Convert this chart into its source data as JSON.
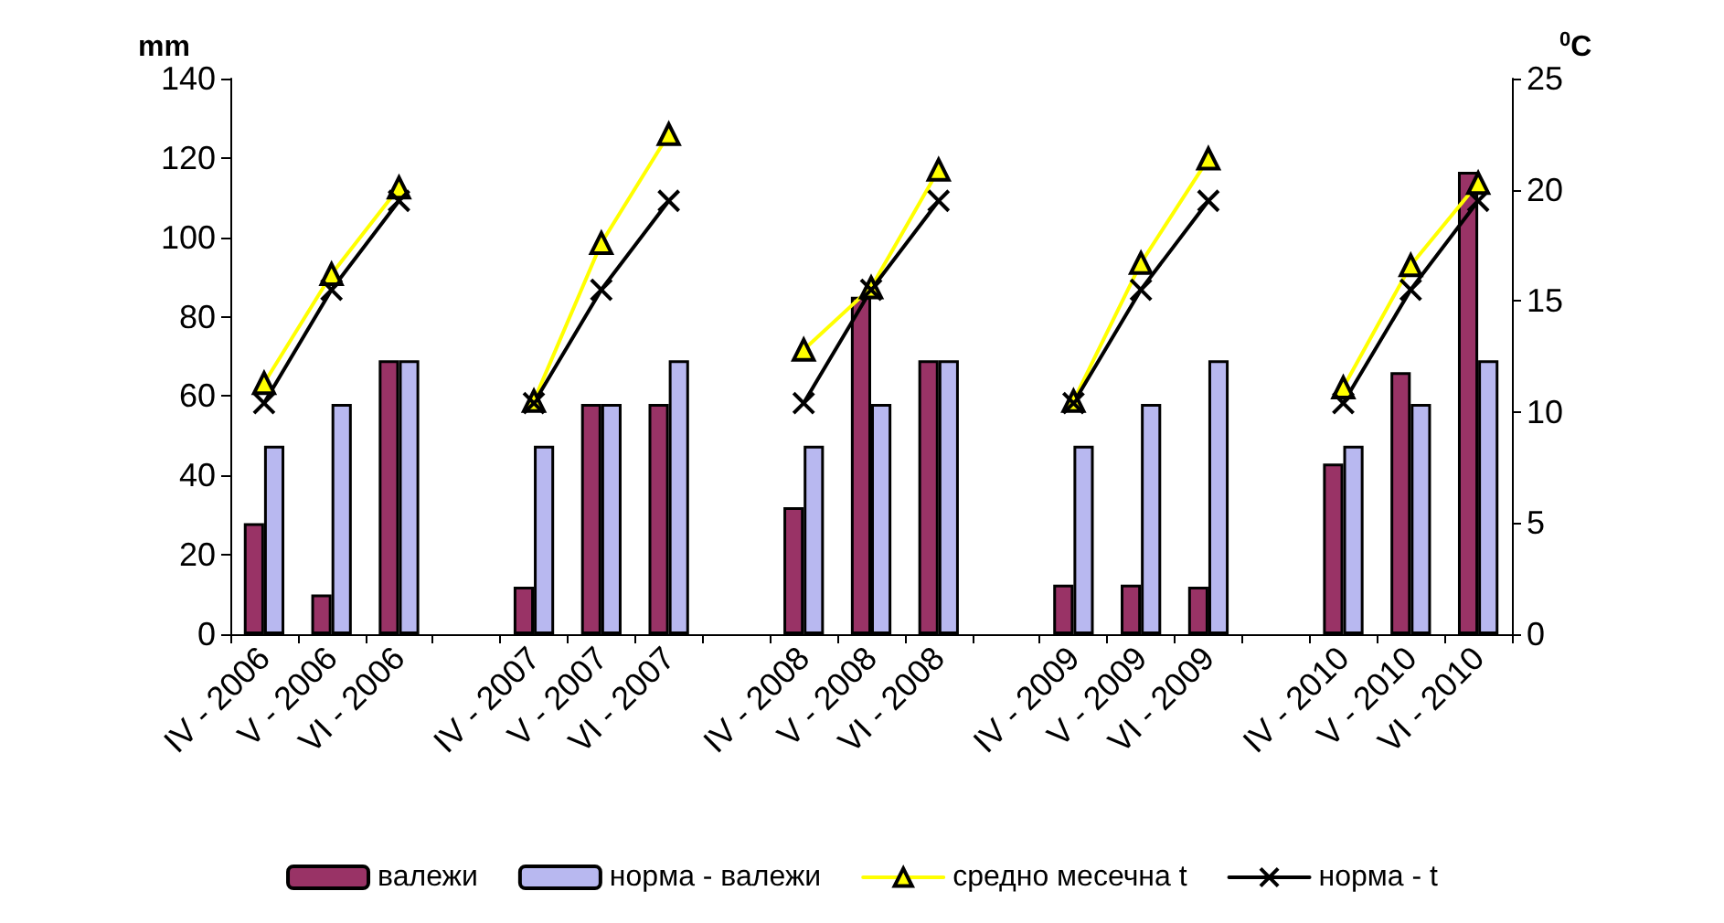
{
  "chart_data": {
    "type": "bar",
    "ylabel": "mm",
    "y2label": "$^{0}$C",
    "categories": [
      "IV - 2006",
      "V - 2006",
      "VI - 2006",
      null,
      "IV - 2007",
      "V - 2007",
      "VI - 2007",
      null,
      "IV - 2008",
      "V - 2008",
      "VI - 2008",
      null,
      "IV - 2009",
      "V - 2009",
      "VI - 2009",
      null,
      "IV - 2010",
      "V - 2010",
      "VI - 2010"
    ],
    "series": [
      {
        "name": "валежи",
        "color": "#993366",
        "values": [
          28,
          10,
          69,
          null,
          12,
          58,
          58,
          null,
          32,
          85,
          69,
          null,
          12.5,
          12.5,
          12,
          null,
          43,
          66,
          116.5
        ]
      },
      {
        "name": "норма - валежи",
        "color": "#b8b8f0",
        "values": [
          47.5,
          58,
          69,
          null,
          47.5,
          58,
          69,
          null,
          47.5,
          58,
          69,
          null,
          47.5,
          58,
          69,
          null,
          47.5,
          58,
          69
        ]
      },
      {
        "name": "средно месечна t",
        "type": "line",
        "axis": "y2",
        "color": "#ffff00",
        "marker": "triangle",
        "values": [
          11.3,
          16.2,
          20.1,
          null,
          10.5,
          17.6,
          22.5,
          null,
          12.8,
          15.6,
          20.9,
          null,
          10.5,
          16.7,
          21.4,
          null,
          11.1,
          16.6,
          20.3
        ]
      },
      {
        "name": "норма - t",
        "type": "line",
        "axis": "y2",
        "color": "#000000",
        "marker": "cross",
        "values": [
          10.4,
          15.5,
          19.5,
          null,
          10.4,
          15.5,
          19.5,
          null,
          10.4,
          15.5,
          19.5,
          null,
          10.4,
          15.5,
          19.5,
          null,
          10.4,
          15.5,
          19.5
        ]
      }
    ],
    "ylim": [
      0,
      140
    ],
    "yticks": [
      0,
      20,
      40,
      60,
      80,
      100,
      120,
      140
    ],
    "y2lim": [
      0,
      25
    ],
    "y2ticks": [
      0,
      5,
      10,
      15,
      20,
      25
    ],
    "grid": false,
    "legend": "bottom"
  }
}
